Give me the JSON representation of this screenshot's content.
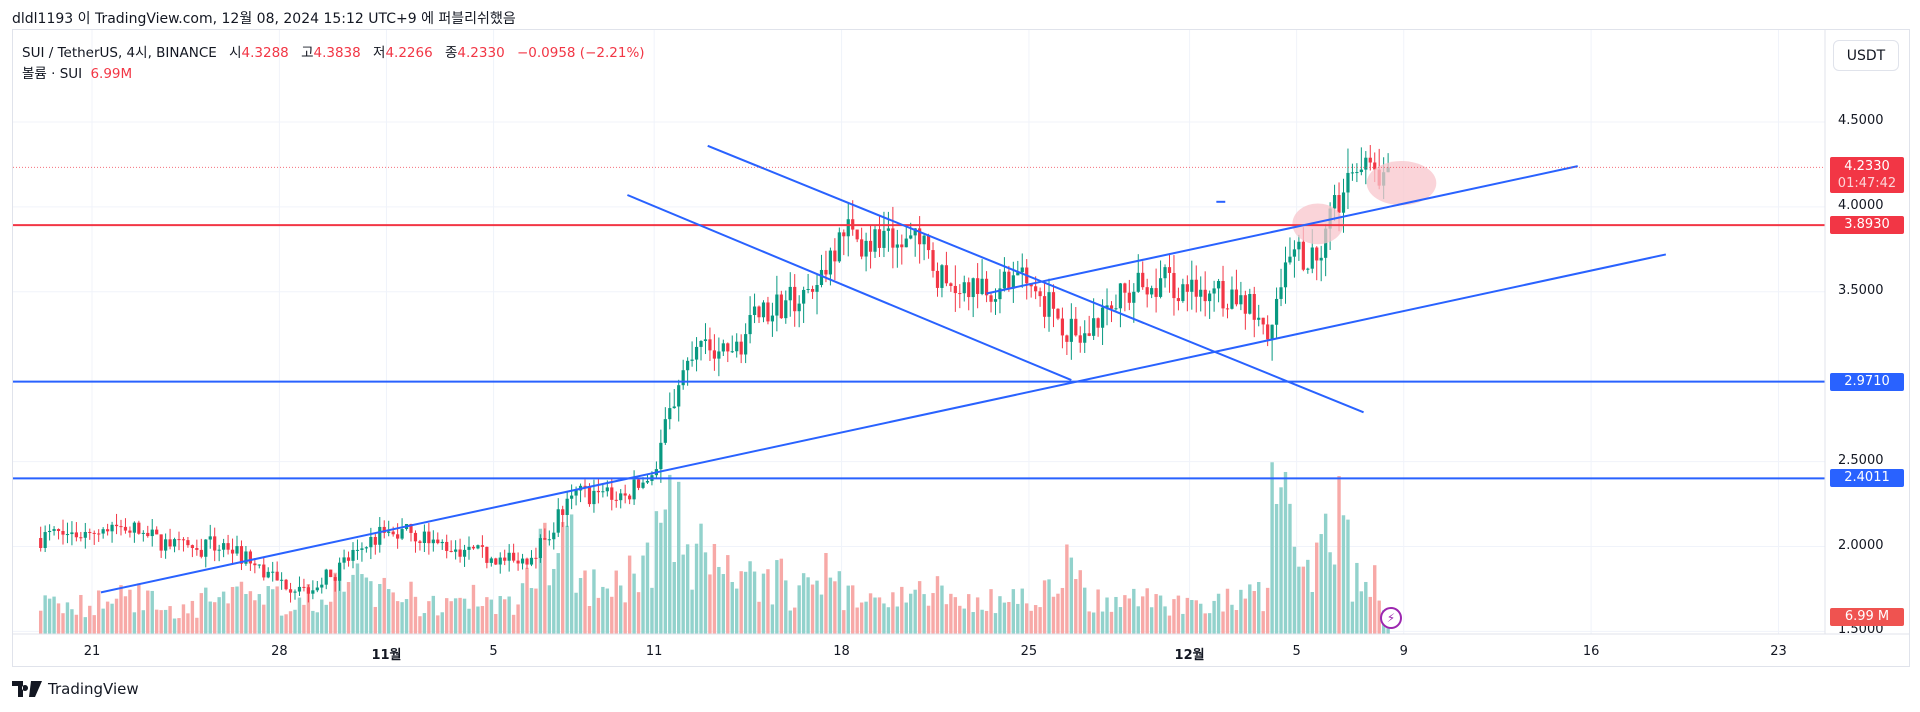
{
  "header": {
    "published": "dldl1193 이 TradingView.com, 12월 08, 2024 15:12 UTC+9 에 퍼블리쉬했음"
  },
  "legend": {
    "symbol": "SUI / TetherUS, 4시, BINANCE",
    "open_label": "시",
    "open": "4.3288",
    "high_label": "고",
    "high": "4.3838",
    "low_label": "저",
    "low": "4.2266",
    "close_label": "종",
    "close": "4.2330",
    "change": "−0.0958 (−2.21%)",
    "volume_label": "볼륨 · SUI",
    "volume": "6.99M"
  },
  "currency_button": "USDT",
  "colors": {
    "up": "#089981",
    "down": "#f23645",
    "drawing_blue": "#2962ff",
    "drawing_red": "#f23645",
    "highlight": "#f8c5cc",
    "volume_up": "#92d2cc",
    "volume_down": "#f7a9a7"
  },
  "price_axis": {
    "ticks": [
      "4.5000",
      "4.0000",
      "3.5000",
      "2.5000",
      "2.0000",
      "1.5000"
    ]
  },
  "tags": {
    "last_price": "4.2330",
    "countdown": "01:47:42",
    "h1": "3.8930",
    "h2": "2.9710",
    "h3": "2.4011",
    "volume": "6.99 M"
  },
  "time_axis": {
    "ticks": [
      "21",
      "28",
      "11월",
      "5",
      "11",
      "18",
      "25",
      "12월",
      "5",
      "9",
      "16",
      "23"
    ]
  },
  "branding": {
    "logo_text": "TradingView"
  },
  "chart_data": {
    "type": "candlestick",
    "interval": "4h",
    "symbol": "SUI / TetherUS",
    "ylim": [
      1.5,
      4.6
    ],
    "grid": true,
    "xticks_dates": [
      "2024-10-21",
      "2024-10-28",
      "2024-11-01",
      "2024-11-05",
      "2024-11-11",
      "2024-11-18",
      "2024-11-25",
      "2024-12-01",
      "2024-12-05",
      "2024-12-09",
      "2024-12-16",
      "2024-12-23"
    ],
    "yticks": [
      4.5,
      4.0,
      3.5,
      2.5,
      2.0,
      1.5
    ],
    "daily_close_approx": {
      "dates": [
        "2024-10-18",
        "2024-10-19",
        "2024-10-20",
        "2024-10-21",
        "2024-10-22",
        "2024-10-23",
        "2024-10-24",
        "2024-10-25",
        "2024-10-26",
        "2024-10-27",
        "2024-10-28",
        "2024-10-29",
        "2024-10-30",
        "2024-10-31",
        "2024-11-01",
        "2024-11-02",
        "2024-11-03",
        "2024-11-04",
        "2024-11-05",
        "2024-11-06",
        "2024-11-07",
        "2024-11-08",
        "2024-11-09",
        "2024-11-10",
        "2024-11-11",
        "2024-11-12",
        "2024-11-13",
        "2024-11-14",
        "2024-11-15",
        "2024-11-16",
        "2024-11-17",
        "2024-11-18",
        "2024-11-19",
        "2024-11-20",
        "2024-11-21",
        "2024-11-22",
        "2024-11-23",
        "2024-11-24",
        "2024-11-25",
        "2024-11-26",
        "2024-11-27",
        "2024-11-28",
        "2024-11-29",
        "2024-11-30",
        "2024-12-01",
        "2024-12-02",
        "2024-12-03",
        "2024-12-04",
        "2024-12-05",
        "2024-12-06",
        "2024-12-07",
        "2024-12-08"
      ],
      "close": [
        2.05,
        2.07,
        2.08,
        2.12,
        2.08,
        2.0,
        1.98,
        2.02,
        1.9,
        1.8,
        1.76,
        1.82,
        1.98,
        2.08,
        2.08,
        2.02,
        1.98,
        1.93,
        1.9,
        2.04,
        2.3,
        2.32,
        2.3,
        2.42,
        2.95,
        3.22,
        3.15,
        3.35,
        3.45,
        3.5,
        3.85,
        3.8,
        3.76,
        3.78,
        3.55,
        3.58,
        3.52,
        3.55,
        3.4,
        3.2,
        3.42,
        3.5,
        3.58,
        3.5,
        3.52,
        3.48,
        3.22,
        3.75,
        3.7,
        4.2,
        4.22,
        4.233
      ],
      "volume_millions": [
        10,
        9,
        8,
        9,
        10,
        9,
        8,
        10,
        12,
        11,
        9,
        10,
        14,
        12,
        11,
        9,
        8,
        10,
        9,
        22,
        24,
        14,
        13,
        20,
        32,
        22,
        18,
        16,
        15,
        12,
        16,
        12,
        10,
        11,
        13,
        10,
        9,
        10,
        12,
        18,
        11,
        10,
        10,
        9,
        8,
        9,
        11,
        36,
        20,
        34,
        16,
        6.99
      ]
    },
    "horizontal_lines": [
      {
        "price": 3.893,
        "color": "#f23645"
      },
      {
        "price": 2.971,
        "color": "#2962ff"
      },
      {
        "price": 2.4011,
        "color": "#2962ff"
      }
    ],
    "trend_lines": [
      {
        "from": [
          "2024-10-21 08:00",
          1.73
        ],
        "to": [
          "2024-12-18 19:00",
          3.72
        ]
      },
      {
        "from": [
          "2024-11-23 10:00",
          3.49
        ],
        "to": [
          "2024-12-15 12:00",
          4.24
        ]
      },
      {
        "from": [
          "2024-11-13 00:00",
          4.36
        ],
        "to": [
          "2024-12-07 12:00",
          2.79
        ]
      },
      {
        "from": [
          "2024-11-10 00:00",
          4.07
        ],
        "to": [
          "2024-11-26 14:00",
          2.98
        ]
      },
      {
        "from": [
          "2024-12-02 00:00",
          4.03
        ],
        "to": [
          "2024-12-02 08:00",
          4.03
        ]
      }
    ],
    "highlights": [
      {
        "center": [
          "2024-12-05 19:00",
          3.9
        ],
        "rx_days": 0.95,
        "ry_price": 0.12
      },
      {
        "center": [
          "2024-12-08 22:00",
          4.14
        ],
        "rx_days": 1.3,
        "ry_price": 0.13
      }
    ],
    "last_price": 4.233
  }
}
